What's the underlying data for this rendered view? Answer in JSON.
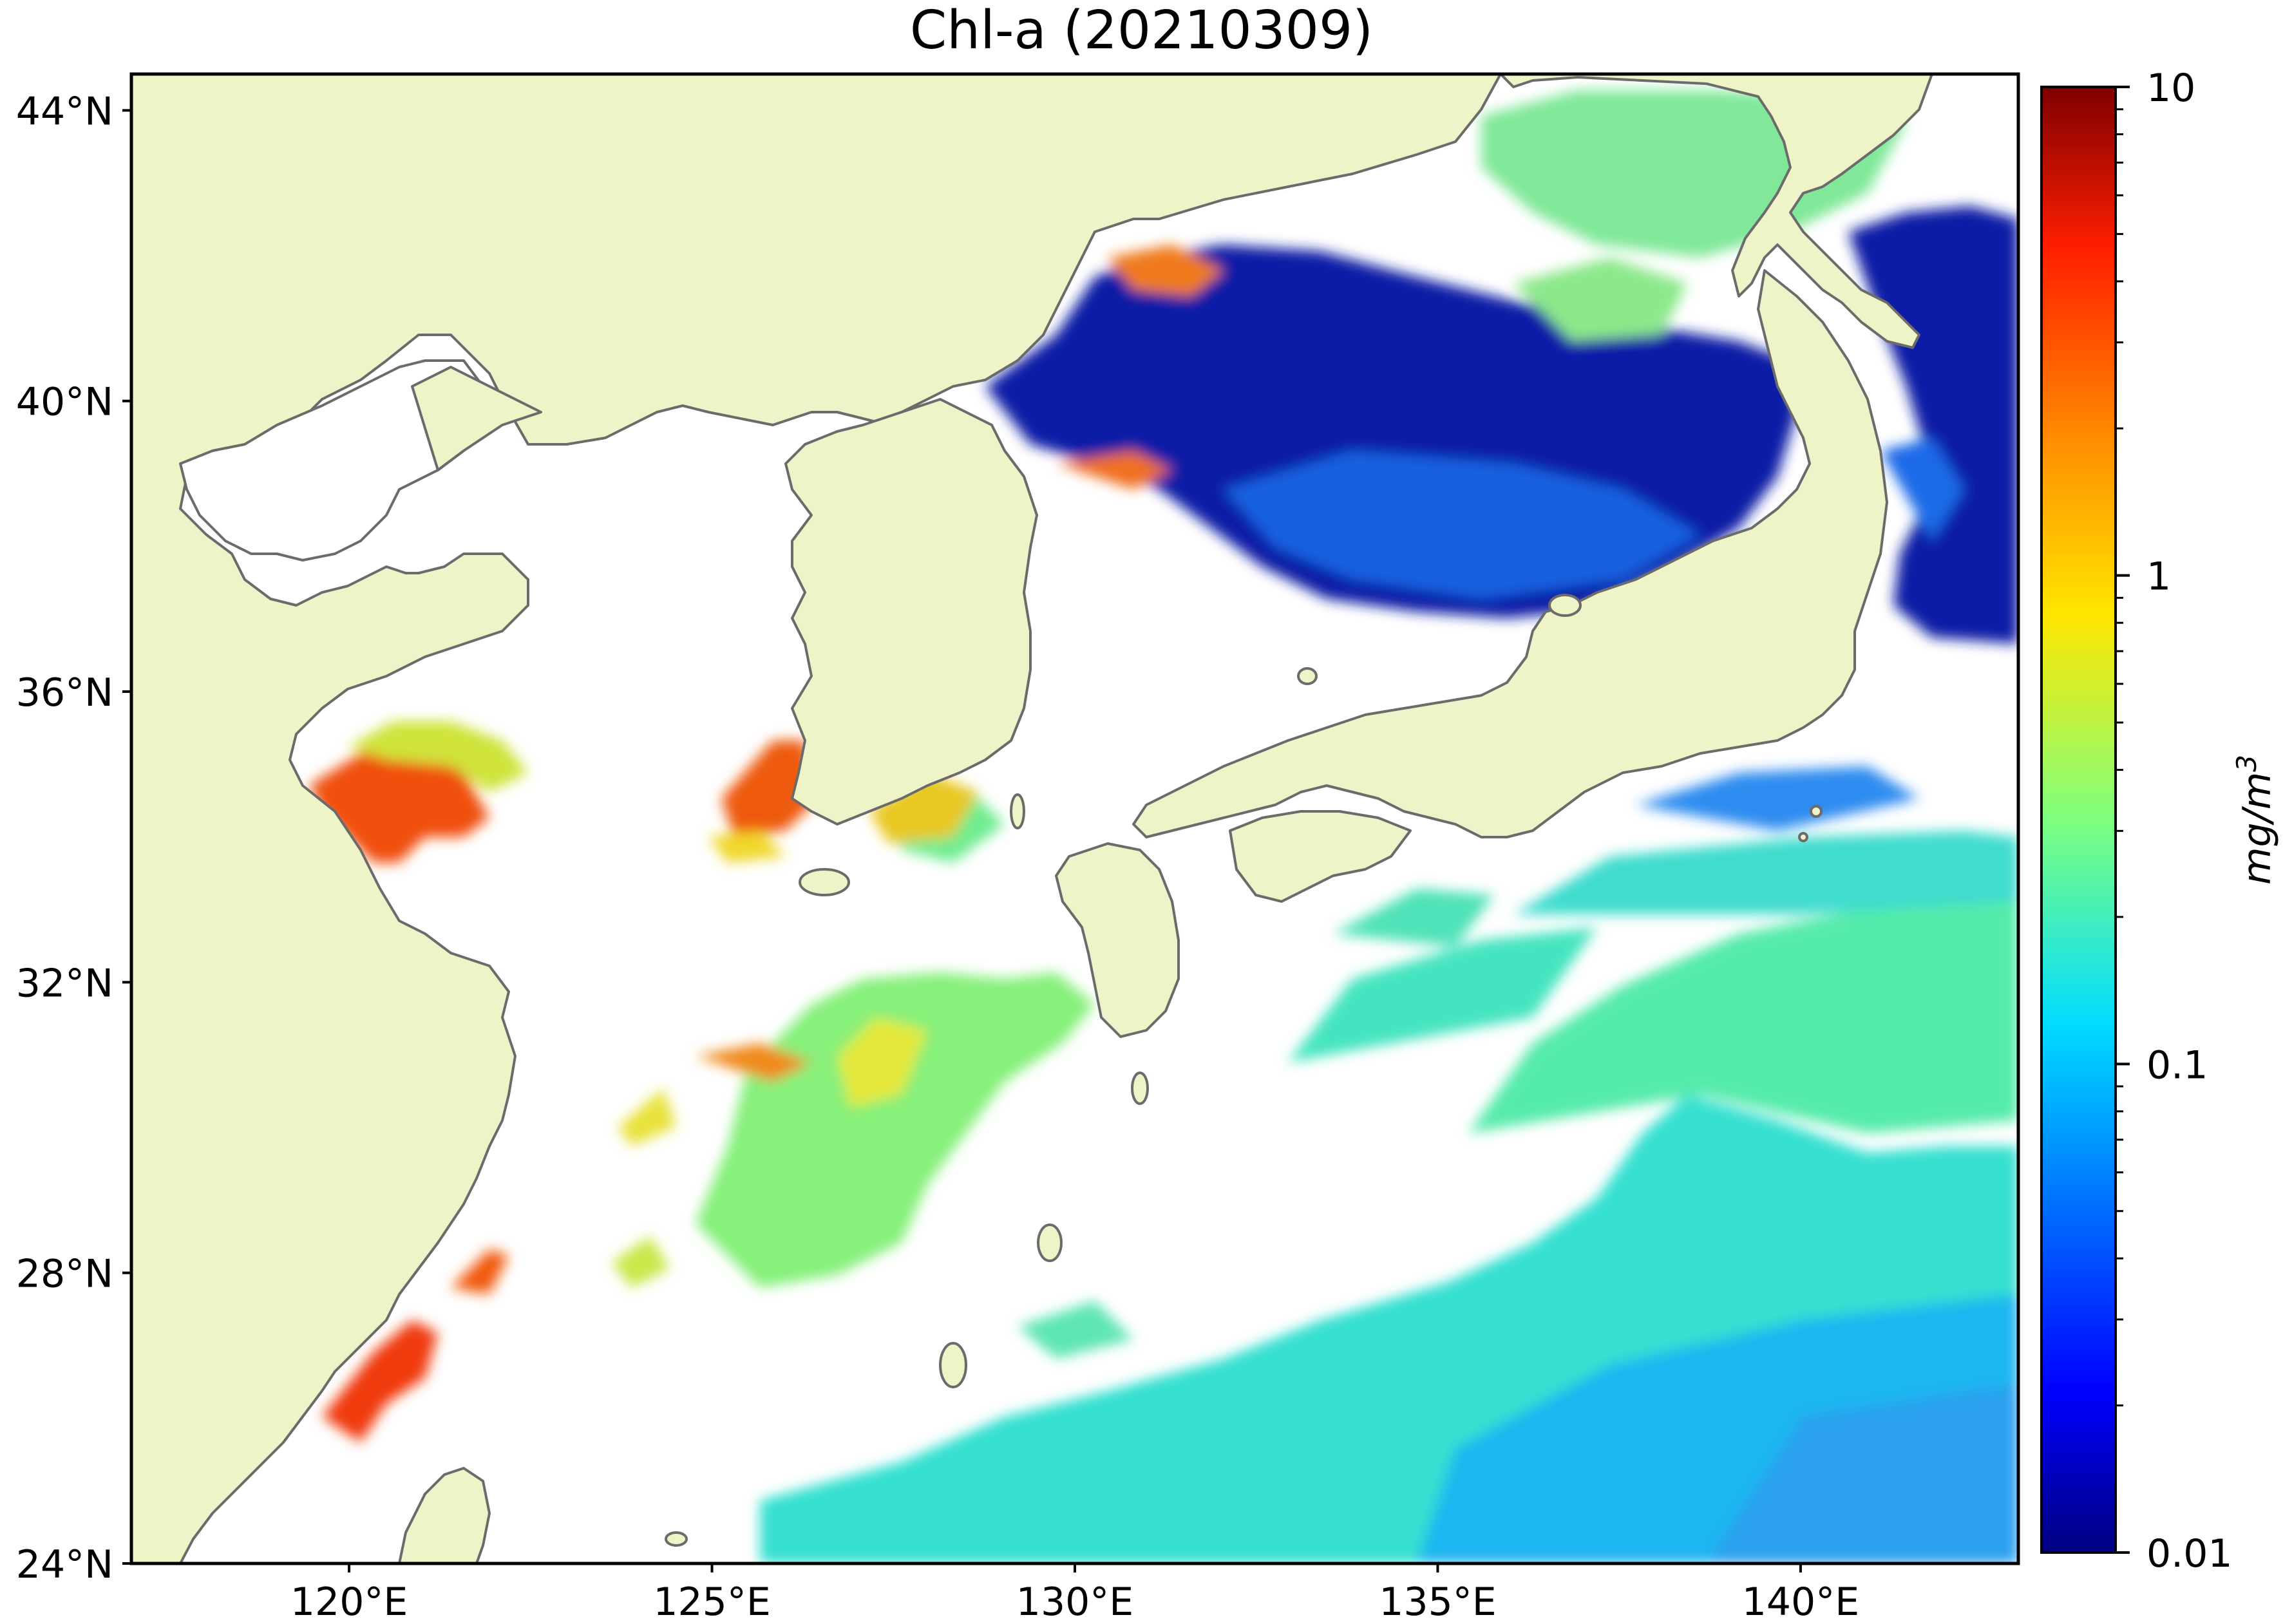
{
  "title": "Chl-a (20210309)",
  "map": {
    "extent": {
      "lon": [
        117,
        143
      ],
      "lat": [
        24,
        44.5
      ]
    },
    "lat_ticks": [
      {
        "value": 44,
        "label": "44°N"
      },
      {
        "value": 40,
        "label": "40°N"
      },
      {
        "value": 36,
        "label": "36°N"
      },
      {
        "value": 32,
        "label": "32°N"
      },
      {
        "value": 28,
        "label": "28°N"
      },
      {
        "value": 24,
        "label": "24°N"
      }
    ],
    "lon_ticks": [
      {
        "value": 120,
        "label": "120°E"
      },
      {
        "value": 125,
        "label": "125°E"
      },
      {
        "value": 130,
        "label": "130°E"
      },
      {
        "value": 135,
        "label": "135°E"
      },
      {
        "value": 140,
        "label": "140°E"
      }
    ],
    "colors": {
      "land": "#eef3c8",
      "coastline": "#6b6b6b",
      "cloud_no_data": "#ffffff"
    }
  },
  "colorbar": {
    "colormap": "jet",
    "scale": "log",
    "range": [
      0.01,
      10
    ],
    "ticks": [
      {
        "value": 10,
        "label": "10"
      },
      {
        "value": 1,
        "label": "1"
      },
      {
        "value": 0.1,
        "label": "0.1"
      },
      {
        "value": 0.01,
        "label": "0.01"
      }
    ],
    "unit": "mg/m3",
    "unit_base": "mg/m",
    "unit_sup": "3"
  }
}
